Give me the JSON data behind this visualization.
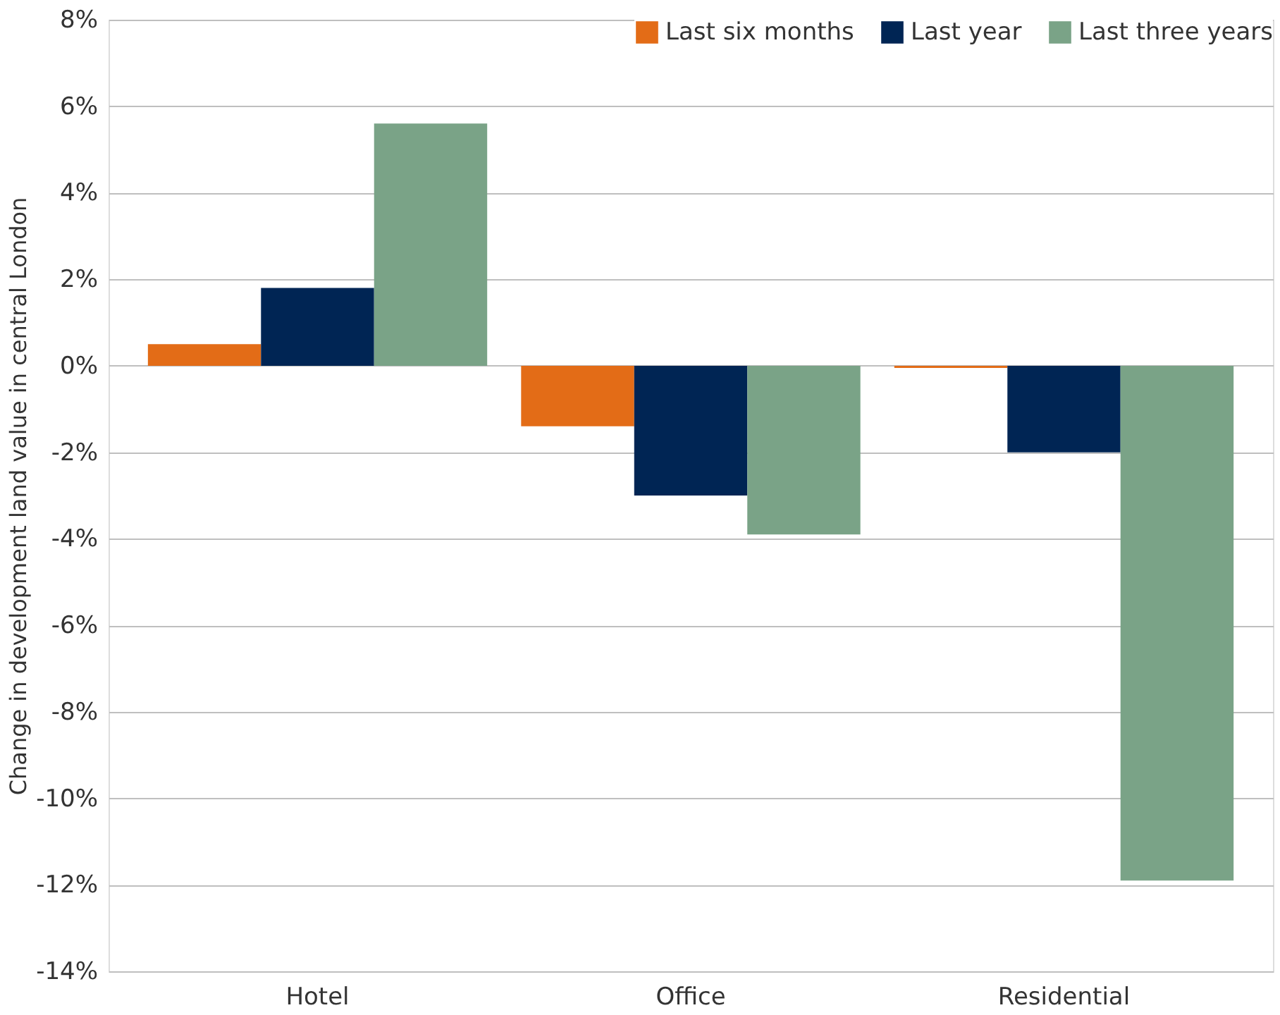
{
  "chart_data": {
    "type": "bar",
    "ylabel": "Change in development land value in central London",
    "categories": [
      "Hotel",
      "Office",
      "Residential"
    ],
    "series": [
      {
        "name": "Last six months",
        "color": "#e36c17",
        "values": [
          0.5,
          -1.4,
          -0.05
        ]
      },
      {
        "name": "Last year",
        "color": "#002554",
        "values": [
          1.8,
          -3.0,
          -2.0
        ]
      },
      {
        "name": "Last three years",
        "color": "#7aa387",
        "values": [
          5.6,
          -3.9,
          -11.9
        ]
      }
    ],
    "ylim": [
      -14,
      8
    ],
    "yticks": [
      {
        "value": -14,
        "label": "-14%"
      },
      {
        "value": -12,
        "label": "-12%"
      },
      {
        "value": -10,
        "label": "-10%"
      },
      {
        "value": -8,
        "label": "-8%"
      },
      {
        "value": -6,
        "label": "-6%"
      },
      {
        "value": -4,
        "label": "-4%"
      },
      {
        "value": -2,
        "label": "-2%"
      },
      {
        "value": 0,
        "label": "0%"
      },
      {
        "value": 2,
        "label": "2%"
      },
      {
        "value": 4,
        "label": "4%"
      },
      {
        "value": 6,
        "label": "6%"
      },
      {
        "value": 8,
        "label": "8%"
      }
    ],
    "grid": "y",
    "legend": "top right"
  }
}
